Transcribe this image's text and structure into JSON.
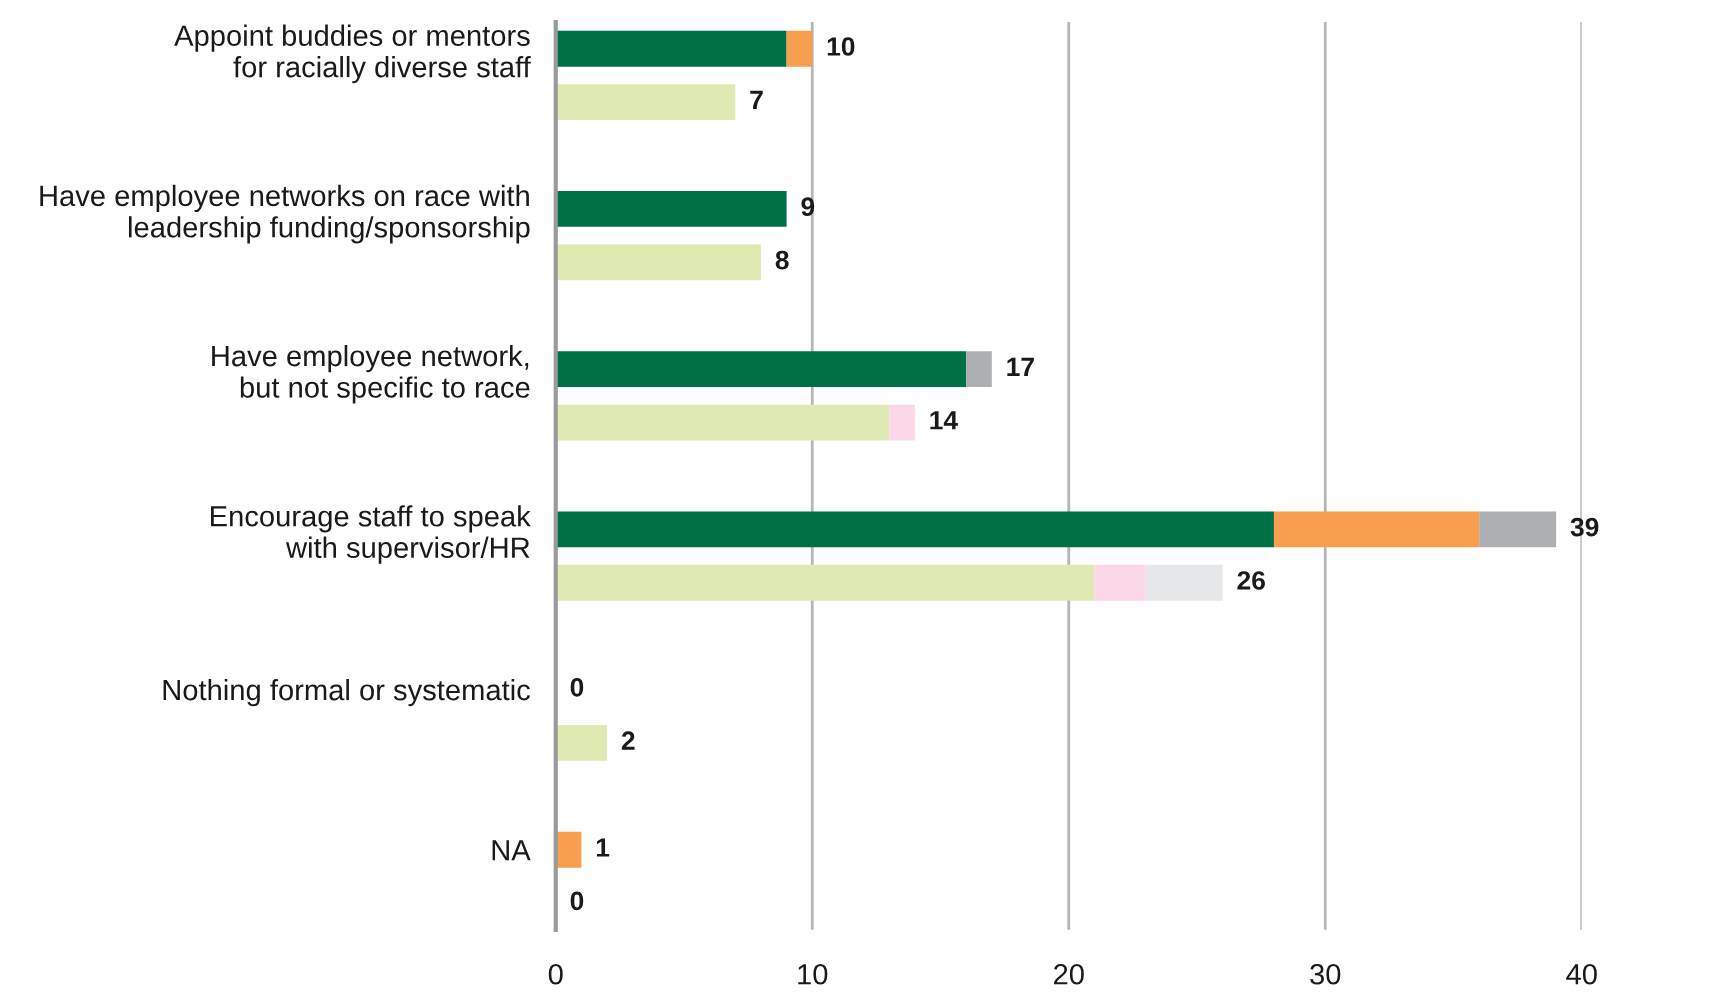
{
  "chart_data": {
    "type": "bar",
    "orientation": "horizontal",
    "stacked": true,
    "categories": [
      "Appoint buddies or mentors\nfor racially diverse staff",
      null,
      null,
      "Have employee networks on race with\nleadership funding/sponsorship",
      null,
      null,
      "Have employee network,\nbut not specific to race",
      null,
      null,
      "Encourage staff to speak\nwith supervisor/HR",
      null,
      null,
      "Nothing formal or systematic",
      null,
      null,
      "NA",
      null
    ],
    "series": [
      {
        "color": "#007045",
        "values": [
          9,
          null,
          null,
          9,
          null,
          null,
          16,
          null,
          null,
          28,
          null,
          null,
          null,
          null,
          null,
          null,
          null
        ]
      },
      {
        "color": "#f79e4f",
        "values": [
          1,
          null,
          null,
          null,
          null,
          null,
          null,
          null,
          null,
          8,
          null,
          null,
          null,
          null,
          null,
          1,
          null
        ]
      },
      {
        "color": "#adb0b2",
        "values": [
          null,
          null,
          null,
          null,
          null,
          null,
          1,
          null,
          null,
          3,
          null,
          null,
          null,
          null,
          null,
          null,
          null
        ]
      },
      {
        "color": "#dfeab3",
        "values": [
          null,
          7,
          null,
          null,
          8,
          null,
          null,
          13,
          null,
          null,
          21,
          null,
          null,
          2,
          null,
          null,
          null
        ]
      },
      {
        "color": "#fad8e7",
        "values": [
          null,
          null,
          null,
          null,
          null,
          null,
          null,
          1,
          null,
          null,
          2,
          null,
          null,
          null,
          null,
          null,
          null
        ]
      },
      {
        "color": "#e6e7e8",
        "values": [
          null,
          null,
          null,
          null,
          null,
          null,
          null,
          null,
          null,
          null,
          3,
          null,
          null,
          null,
          null,
          null,
          null
        ]
      }
    ],
    "totals": [
      "10",
      "7",
      null,
      "9",
      "8",
      null,
      "17",
      "14",
      null,
      "39",
      "26",
      null,
      "0",
      "2",
      null,
      "1",
      "0"
    ],
    "xlim": [
      0,
      40
    ],
    "xticks": [
      0,
      10,
      20,
      30,
      40
    ],
    "grid": "x"
  }
}
